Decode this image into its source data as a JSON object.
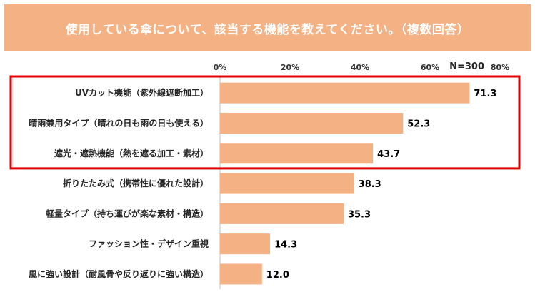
{
  "header": {
    "title": "使用している傘について、該当する機能を教えてください。（複数回答）"
  },
  "sample_size": "N=300",
  "colors": {
    "title_bg": "#f4b183",
    "bar": "#f4b183",
    "highlight_border": "#e00000"
  },
  "chart_data": {
    "type": "bar",
    "orientation": "horizontal",
    "title": "使用している傘について、該当する機能を教えてください。（複数回答）",
    "categories": [
      "UVカット機能（紫外線遮断加工）",
      "晴雨兼用タイプ（晴れの日も雨の日も使える）",
      "遮光・遮熱機能（熱を遮る加工・素材）",
      "折りたたみ式（携帯性に優れた設計）",
      "軽量タイプ（持ち運びが楽な素材・構造）",
      "ファッション性・デザイン重視",
      "風に強い設計（耐風骨や反り返りに強い構造）"
    ],
    "values": [
      71.3,
      52.3,
      43.7,
      38.3,
      35.3,
      14.3,
      12.0
    ],
    "value_labels": [
      "71.3",
      "52.3",
      "43.7",
      "38.3",
      "35.3",
      "14.3",
      "12.0"
    ],
    "xticks": [
      "0%",
      "20%",
      "40%",
      "60%",
      "80%"
    ],
    "xlim": [
      0,
      80
    ],
    "xaxis_position": "top",
    "grid": false,
    "highlighted_categories": [
      0,
      1,
      2
    ]
  }
}
